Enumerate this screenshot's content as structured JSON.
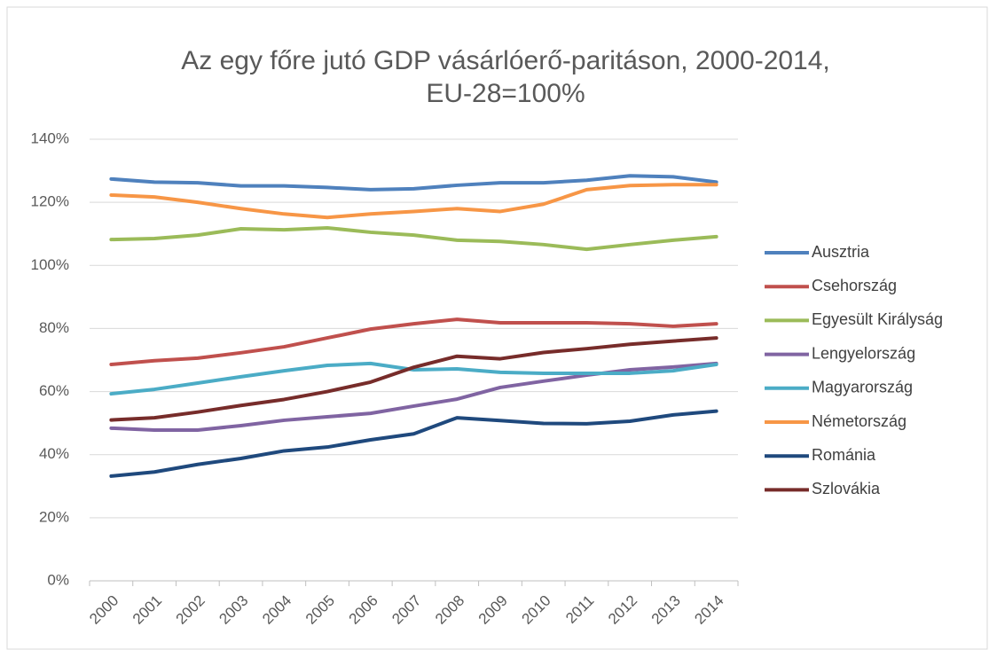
{
  "chart_data": {
    "type": "line",
    "title": [
      "Az egy főre jutó GDP vásárlóerő-paritáson, 2000-2014,",
      "EU-28=100%"
    ],
    "categories": [
      "2000",
      "2001",
      "2002",
      "2003",
      "2004",
      "2005",
      "2006",
      "2007",
      "2008",
      "2009",
      "2010",
      "2011",
      "2012",
      "2013",
      "2014"
    ],
    "ylim": [
      0,
      140
    ],
    "yticks": [
      {
        "value": 0,
        "label": "0%"
      },
      {
        "value": 20,
        "label": "20%"
      },
      {
        "value": 40,
        "label": "40%"
      },
      {
        "value": 60,
        "label": "60%"
      },
      {
        "value": 80,
        "label": "80%"
      },
      {
        "value": 100,
        "label": "100%"
      },
      {
        "value": 120,
        "label": "120%"
      },
      {
        "value": 140,
        "label": "140%"
      }
    ],
    "grid": true,
    "legend": "right",
    "series": [
      {
        "name": "Ausztria",
        "color": "#4f81bd",
        "values": [
          127.4,
          126.4,
          126.2,
          125.2,
          125.2,
          124.7,
          124,
          124.3,
          125.4,
          126.2,
          126.2,
          127,
          128.4,
          128.1,
          126.4
        ]
      },
      {
        "name": "Csehország",
        "color": "#c0504d",
        "values": [
          68.6,
          69.8,
          70.6,
          72.3,
          74.2,
          77,
          79.8,
          81.5,
          82.9,
          81.8,
          81.8,
          81.8,
          81.5,
          80.7,
          81.5
        ]
      },
      {
        "name": "Egyesült Királyság",
        "color": "#9bbb59",
        "values": [
          108.2,
          108.5,
          109.6,
          111.6,
          111.3,
          111.9,
          110.5,
          109.6,
          108,
          107.6,
          106.6,
          105.1,
          106.6,
          108,
          109.1
        ]
      },
      {
        "name": "Lengyelország",
        "color": "#8064a2",
        "values": [
          48.4,
          47.8,
          47.8,
          49.2,
          50.9,
          52,
          53.1,
          55.4,
          57.6,
          61.3,
          63.3,
          65.2,
          66.9,
          67.8,
          68.9
        ]
      },
      {
        "name": "Magyarország",
        "color": "#4bacc6",
        "values": [
          59.3,
          60.7,
          62.7,
          64.7,
          66.6,
          68.3,
          68.9,
          66.9,
          67.2,
          66.1,
          65.8,
          65.8,
          65.8,
          66.6,
          68.6
        ]
      },
      {
        "name": "Németország",
        "color": "#f79646",
        "values": [
          122.3,
          121.7,
          120,
          118,
          116.3,
          115.2,
          116.3,
          117.1,
          118,
          117.1,
          119.4,
          124,
          125.3,
          125.6,
          125.6
        ]
      },
      {
        "name": "Románia",
        "color": "#1f497d",
        "values": [
          33.2,
          34.5,
          36.9,
          38.8,
          41.2,
          42.4,
          44.7,
          46.6,
          51.7,
          50.8,
          49.9,
          49.8,
          50.6,
          52.6,
          53.8
        ]
      },
      {
        "name": "Szlovákia",
        "color": "#772c2a",
        "values": [
          51,
          51.7,
          53.5,
          55.6,
          57.5,
          60,
          63,
          67.7,
          71.2,
          70.4,
          72.4,
          73.6,
          75,
          76,
          77
        ]
      }
    ]
  }
}
